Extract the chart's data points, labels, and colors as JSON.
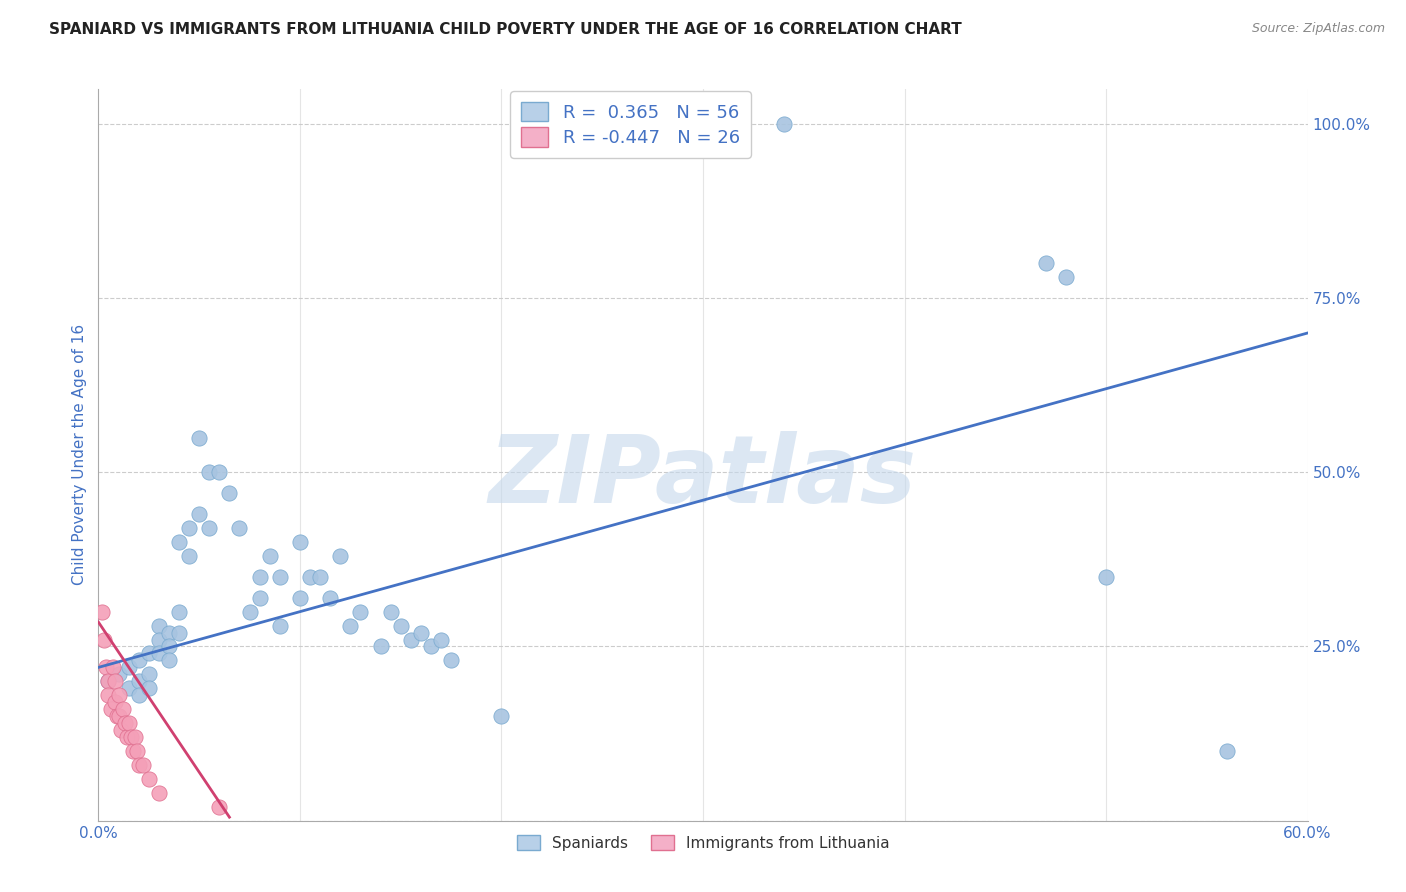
{
  "title": "SPANIARD VS IMMIGRANTS FROM LITHUANIA CHILD POVERTY UNDER THE AGE OF 16 CORRELATION CHART",
  "source": "Source: ZipAtlas.com",
  "ylabel": "Child Poverty Under the Age of 16",
  "xlim": [
    0.0,
    0.6
  ],
  "ylim": [
    0.0,
    1.05
  ],
  "xticks": [
    0.0,
    0.1,
    0.2,
    0.3,
    0.4,
    0.5,
    0.6
  ],
  "xticklabels": [
    "0.0%",
    "",
    "",
    "",
    "",
    "",
    "60.0%"
  ],
  "yticks": [
    0.0,
    0.25,
    0.5,
    0.75,
    1.0
  ],
  "yticklabels": [
    "",
    "25.0%",
    "50.0%",
    "75.0%",
    "100.0%"
  ],
  "blue_R": 0.365,
  "blue_N": 56,
  "pink_R": -0.447,
  "pink_N": 26,
  "blue_color": "#a8c4e0",
  "pink_color": "#f4a0b8",
  "blue_line_color": "#4472c4",
  "pink_line_color": "#d04070",
  "blue_scatter": [
    [
      0.005,
      0.2
    ],
    [
      0.01,
      0.21
    ],
    [
      0.015,
      0.22
    ],
    [
      0.015,
      0.19
    ],
    [
      0.02,
      0.23
    ],
    [
      0.02,
      0.2
    ],
    [
      0.02,
      0.18
    ],
    [
      0.025,
      0.24
    ],
    [
      0.025,
      0.21
    ],
    [
      0.025,
      0.19
    ],
    [
      0.03,
      0.28
    ],
    [
      0.03,
      0.26
    ],
    [
      0.03,
      0.24
    ],
    [
      0.035,
      0.27
    ],
    [
      0.035,
      0.25
    ],
    [
      0.035,
      0.23
    ],
    [
      0.04,
      0.4
    ],
    [
      0.04,
      0.3
    ],
    [
      0.04,
      0.27
    ],
    [
      0.045,
      0.42
    ],
    [
      0.045,
      0.38
    ],
    [
      0.05,
      0.55
    ],
    [
      0.05,
      0.44
    ],
    [
      0.055,
      0.5
    ],
    [
      0.055,
      0.42
    ],
    [
      0.06,
      0.5
    ],
    [
      0.065,
      0.47
    ],
    [
      0.07,
      0.42
    ],
    [
      0.075,
      0.3
    ],
    [
      0.08,
      0.35
    ],
    [
      0.08,
      0.32
    ],
    [
      0.085,
      0.38
    ],
    [
      0.09,
      0.35
    ],
    [
      0.09,
      0.28
    ],
    [
      0.1,
      0.4
    ],
    [
      0.1,
      0.32
    ],
    [
      0.105,
      0.35
    ],
    [
      0.11,
      0.35
    ],
    [
      0.115,
      0.32
    ],
    [
      0.12,
      0.38
    ],
    [
      0.125,
      0.28
    ],
    [
      0.13,
      0.3
    ],
    [
      0.14,
      0.25
    ],
    [
      0.145,
      0.3
    ],
    [
      0.15,
      0.28
    ],
    [
      0.155,
      0.26
    ],
    [
      0.16,
      0.27
    ],
    [
      0.165,
      0.25
    ],
    [
      0.17,
      0.26
    ],
    [
      0.175,
      0.23
    ],
    [
      0.2,
      0.15
    ],
    [
      0.34,
      1.0
    ],
    [
      0.47,
      0.8
    ],
    [
      0.48,
      0.78
    ],
    [
      0.5,
      0.35
    ],
    [
      0.56,
      0.1
    ]
  ],
  "pink_scatter": [
    [
      0.002,
      0.3
    ],
    [
      0.003,
      0.26
    ],
    [
      0.004,
      0.22
    ],
    [
      0.005,
      0.2
    ],
    [
      0.005,
      0.18
    ],
    [
      0.006,
      0.16
    ],
    [
      0.007,
      0.22
    ],
    [
      0.008,
      0.2
    ],
    [
      0.008,
      0.17
    ],
    [
      0.009,
      0.15
    ],
    [
      0.01,
      0.18
    ],
    [
      0.01,
      0.15
    ],
    [
      0.011,
      0.13
    ],
    [
      0.012,
      0.16
    ],
    [
      0.013,
      0.14
    ],
    [
      0.014,
      0.12
    ],
    [
      0.015,
      0.14
    ],
    [
      0.016,
      0.12
    ],
    [
      0.017,
      0.1
    ],
    [
      0.018,
      0.12
    ],
    [
      0.019,
      0.1
    ],
    [
      0.02,
      0.08
    ],
    [
      0.022,
      0.08
    ],
    [
      0.025,
      0.06
    ],
    [
      0.03,
      0.04
    ],
    [
      0.06,
      0.02
    ]
  ],
  "blue_line_x": [
    0.0,
    0.6
  ],
  "blue_line_y": [
    0.22,
    0.7
  ],
  "pink_line_x": [
    0.0,
    0.065
  ],
  "pink_line_y": [
    0.285,
    0.005
  ],
  "watermark_text": "ZIPatlas",
  "watermark_color": "#c5d8ec",
  "watermark_alpha": 0.6,
  "background_color": "#ffffff",
  "grid_color": "#cccccc",
  "title_color": "#222222",
  "axis_label_color": "#4472c4",
  "tick_label_color": "#4472c4",
  "title_fontsize": 11,
  "source_fontsize": 9,
  "legend_fontsize": 13,
  "scatter_size": 120,
  "scatter_edge_color_blue": "#7aaad0",
  "scatter_edge_color_pink": "#e07090",
  "legend_blue_face": "#b8d0e8",
  "legend_pink_face": "#f4b0c8",
  "legend_blue_edge": "#7aaad0",
  "legend_pink_edge": "#e07090"
}
